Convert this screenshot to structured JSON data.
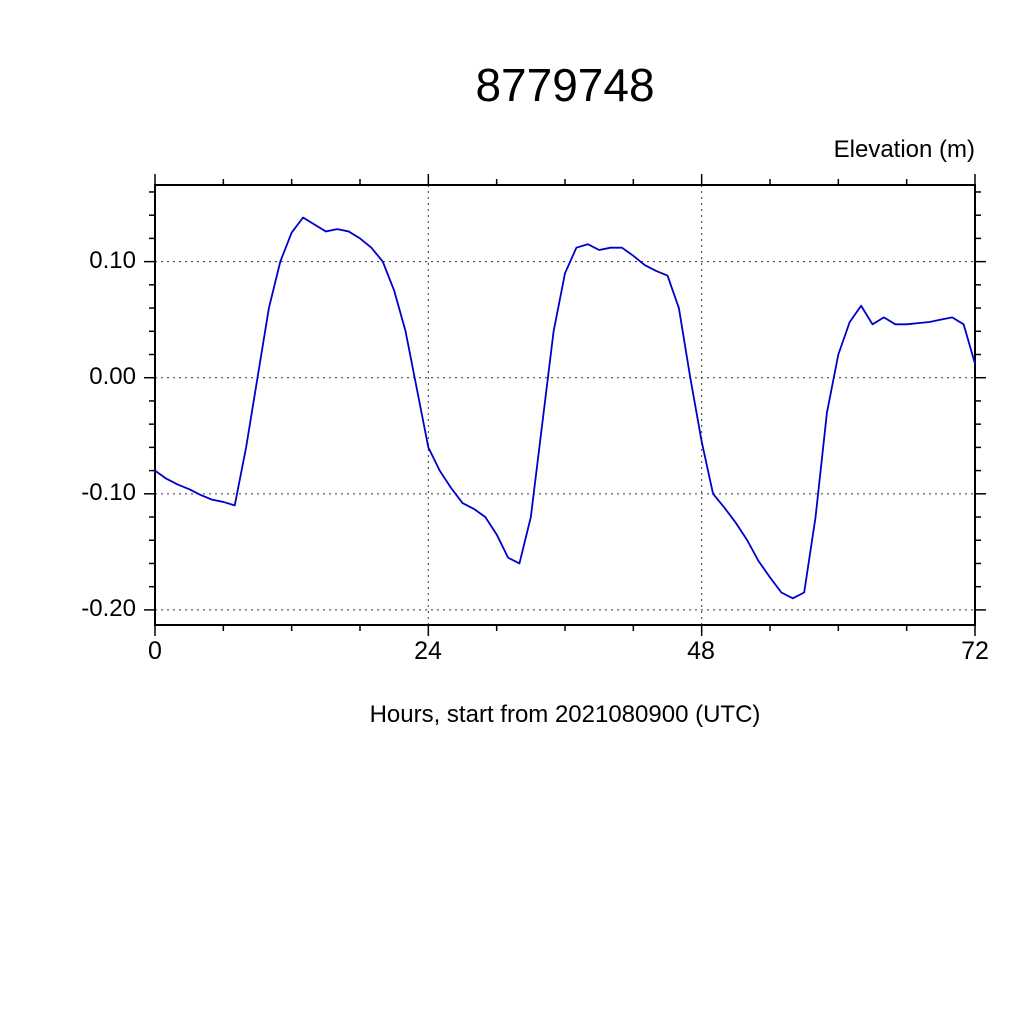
{
  "chart_data": {
    "type": "line",
    "title": "8779748",
    "ylabel": "Elevation (m)",
    "xlabel": "Hours, start from 2021080900 (UTC)",
    "xlim": [
      0,
      72
    ],
    "ylim": [
      -0.213,
      0.166
    ],
    "xticks_major": [
      0,
      24,
      48,
      72
    ],
    "xtick_labels": [
      "0",
      "24",
      "48",
      "72"
    ],
    "yticks_major": [
      0.1,
      0.0,
      -0.1,
      -0.2
    ],
    "ytick_labels": [
      "0.10",
      "0.00",
      "-0.10",
      "-0.20"
    ],
    "x_minor_step": 6,
    "y_minor_step": 0.02,
    "y_minor_range": [
      -0.2,
      0.16
    ],
    "grid_x": [
      24,
      48
    ],
    "grid_y": [
      0.1,
      0.0,
      -0.1,
      -0.2
    ],
    "grid_on": true,
    "legend_position": "none",
    "line_color": "#0000cc",
    "axis_color": "#000000",
    "grid_color": "#333333",
    "series": [
      {
        "name": "elevation",
        "x": [
          0,
          1,
          2,
          3,
          4,
          5,
          6,
          7,
          8,
          9,
          10,
          11,
          12,
          13,
          14,
          15,
          16,
          17,
          18,
          19,
          20,
          21,
          22,
          23,
          24,
          25,
          26,
          27,
          28,
          29,
          30,
          31,
          32,
          33,
          34,
          35,
          36,
          37,
          38,
          39,
          40,
          41,
          42,
          43,
          44,
          45,
          46,
          47,
          48,
          49,
          50,
          51,
          52,
          53,
          54,
          55,
          56,
          57,
          58,
          59,
          60,
          61,
          62,
          63,
          64,
          65,
          66,
          67,
          68,
          69,
          70,
          71,
          72
        ],
        "y": [
          -0.08,
          -0.087,
          -0.092,
          -0.096,
          -0.101,
          -0.105,
          -0.107,
          -0.11,
          -0.06,
          0.0,
          0.06,
          0.1,
          0.125,
          0.138,
          0.132,
          0.126,
          0.128,
          0.126,
          0.12,
          0.112,
          0.1,
          0.075,
          0.04,
          -0.01,
          -0.06,
          -0.08,
          -0.095,
          -0.108,
          -0.113,
          -0.12,
          -0.135,
          -0.155,
          -0.16,
          -0.12,
          -0.04,
          0.04,
          0.09,
          0.112,
          0.115,
          0.11,
          0.112,
          0.112,
          0.105,
          0.097,
          0.092,
          0.088,
          0.06,
          0.0,
          -0.055,
          -0.1,
          -0.112,
          -0.125,
          -0.14,
          -0.158,
          -0.172,
          -0.185,
          -0.19,
          -0.185,
          -0.12,
          -0.03,
          0.02,
          0.048,
          0.062,
          0.046,
          0.052,
          0.046,
          0.046,
          0.047,
          0.048,
          0.05,
          0.052,
          0.046,
          0.012
        ]
      }
    ]
  }
}
